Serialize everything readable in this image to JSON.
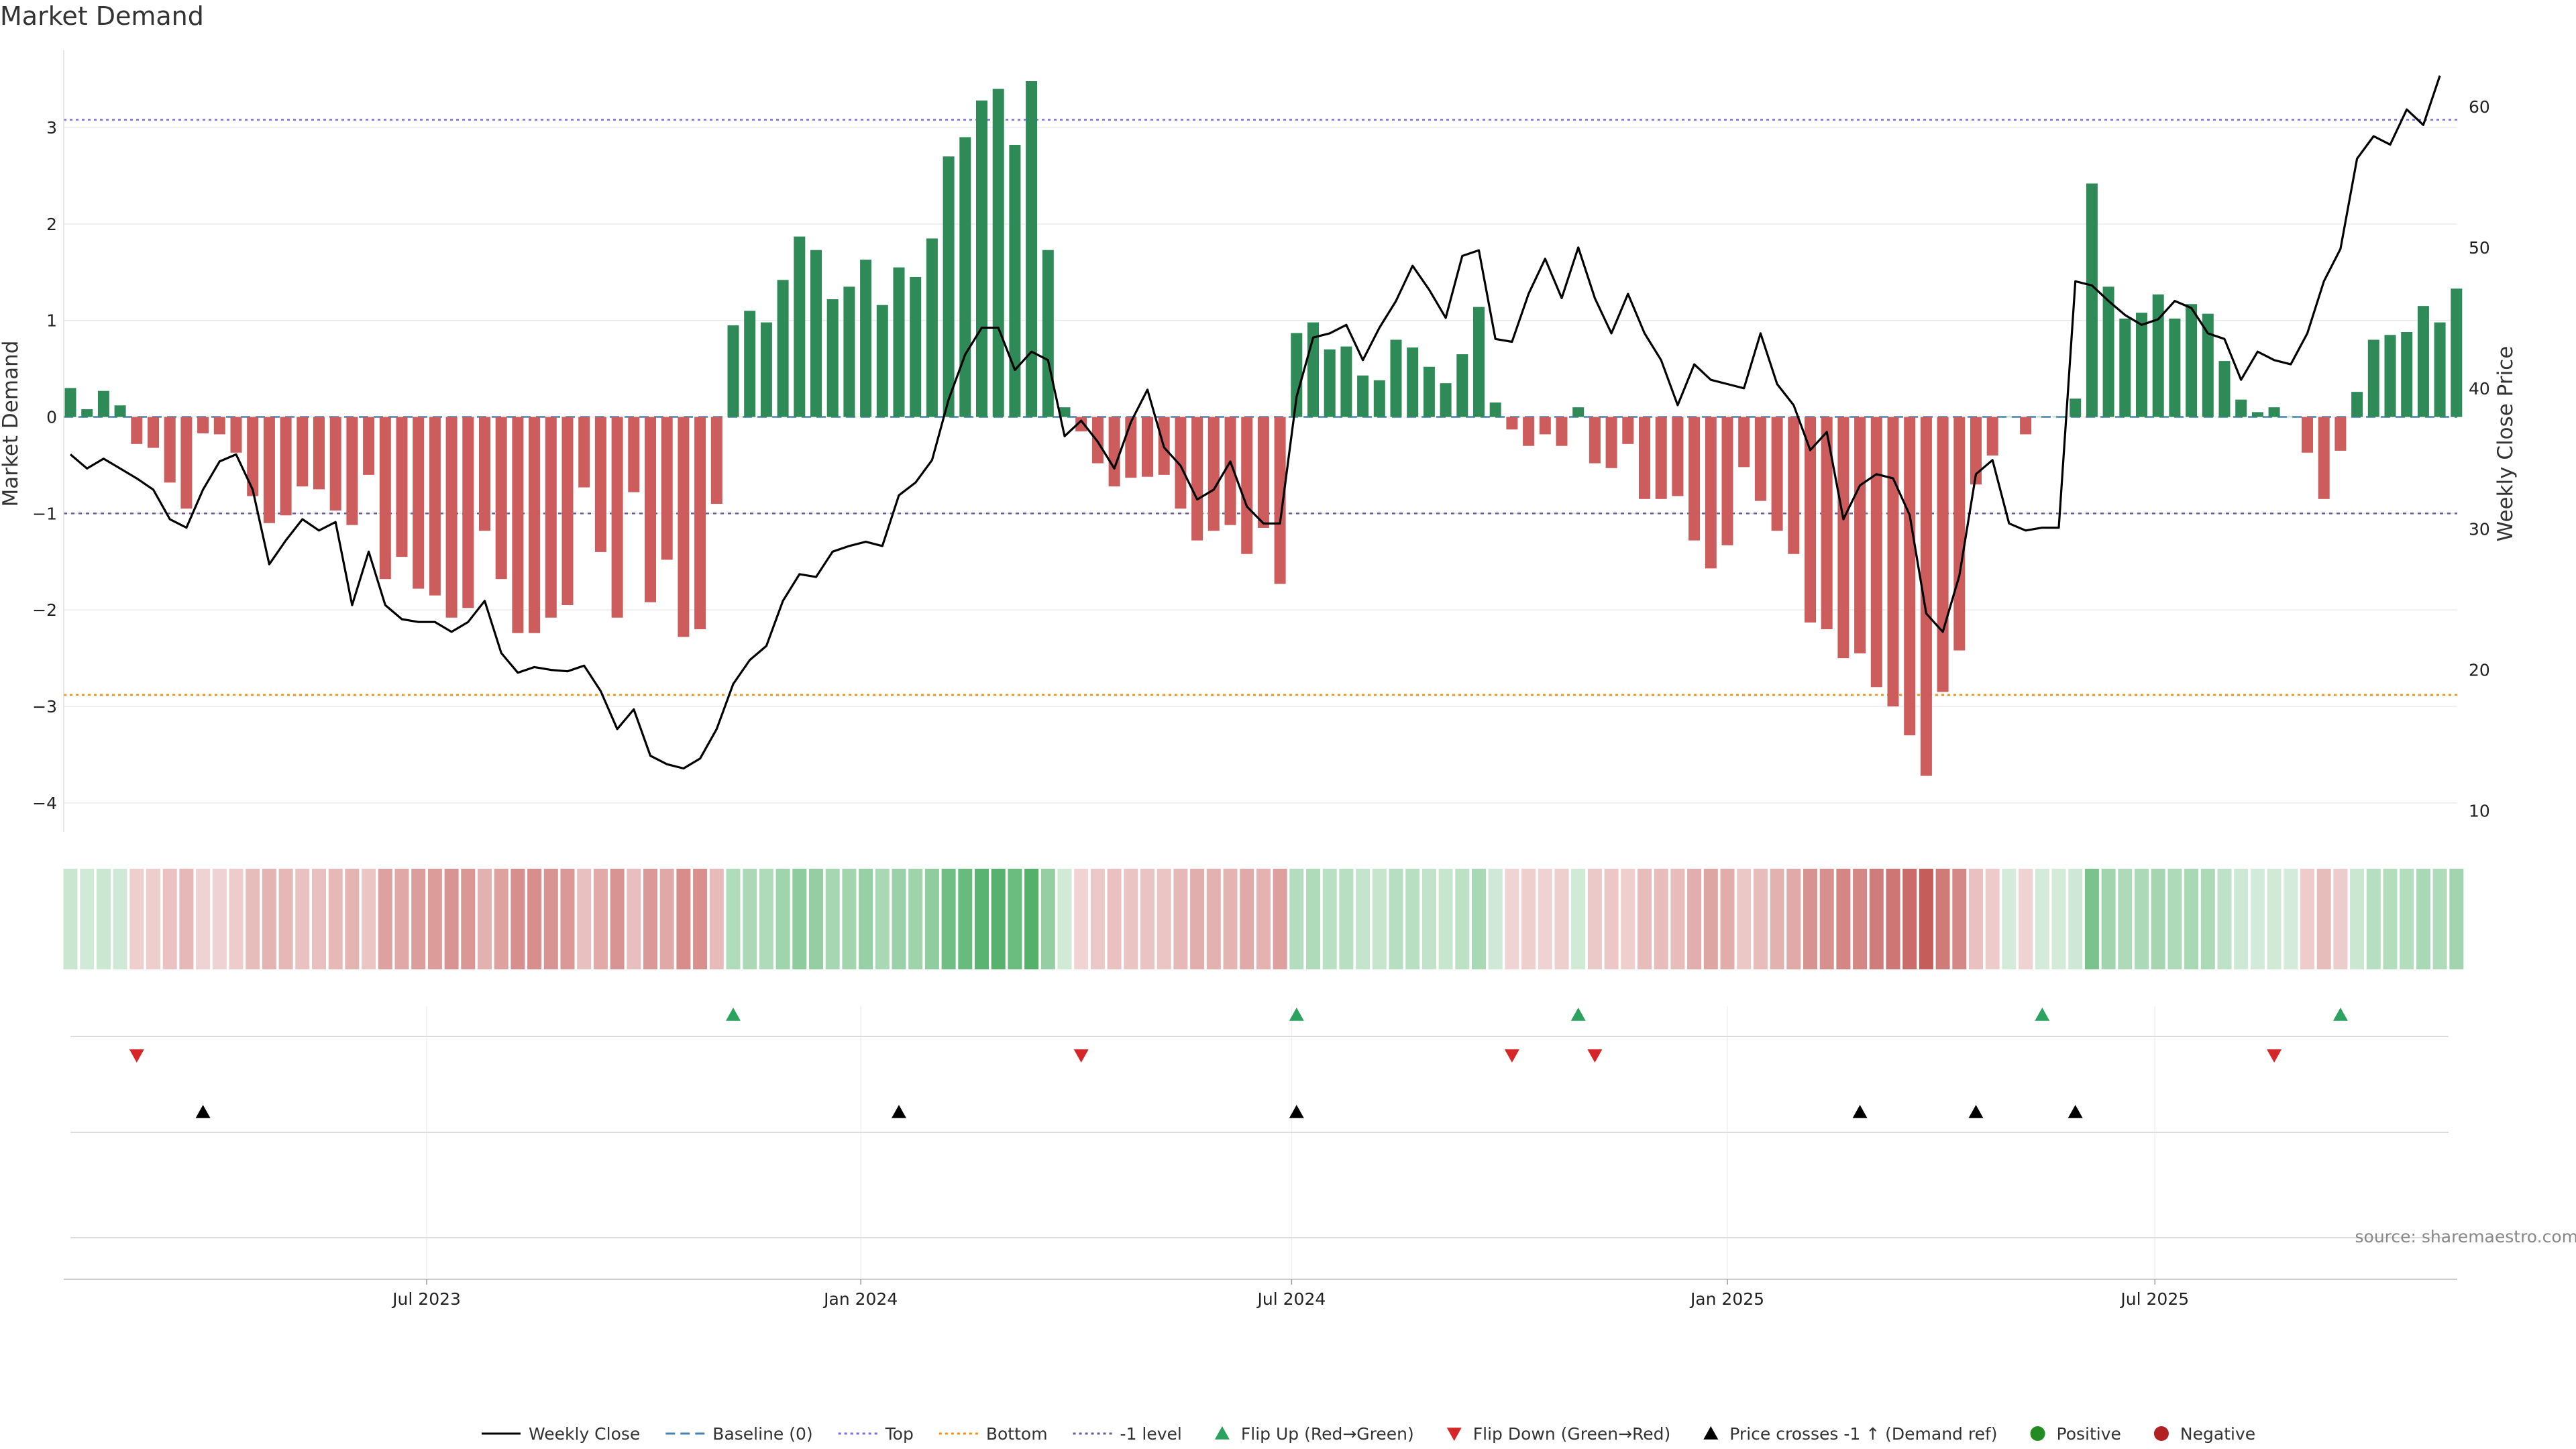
{
  "title": "Market Demand",
  "chart_data": {
    "type": "bar",
    "title": "Market Demand",
    "ylabel_left": "Market Demand",
    "ylabel_right": "Weekly Close Price",
    "ylim_left": [
      -4.3,
      3.8
    ],
    "ylim_right": [
      8.5,
      64
    ],
    "yticks_left": [
      {
        "value": 3,
        "label": "3"
      },
      {
        "value": 2,
        "label": "2"
      },
      {
        "value": 1,
        "label": "1"
      },
      {
        "value": 0,
        "label": "0"
      },
      {
        "value": -1,
        "label": "−1"
      },
      {
        "value": -2,
        "label": "−2"
      },
      {
        "value": -3,
        "label": "−3"
      },
      {
        "value": -4,
        "label": "−4"
      }
    ],
    "yticks_right": [
      {
        "value": 60,
        "label": "60"
      },
      {
        "value": 50,
        "label": "50"
      },
      {
        "value": 40,
        "label": "40"
      },
      {
        "value": 30,
        "label": "30"
      },
      {
        "value": 20,
        "label": "20"
      },
      {
        "value": 10,
        "label": "10"
      }
    ],
    "xticks": [
      {
        "index": 21.5,
        "label": "Jul 2023"
      },
      {
        "index": 47.7,
        "label": "Jan 2024"
      },
      {
        "index": 73.7,
        "label": "Jul 2024"
      },
      {
        "index": 100,
        "label": "Jan 2025"
      },
      {
        "index": 125.8,
        "label": "Jul 2025"
      }
    ],
    "reference_lines": {
      "top": 3.08,
      "bottom": -2.88,
      "minus_one": -1,
      "baseline": 0
    },
    "series": [
      {
        "name": "Market Demand (weekly)",
        "values": [
          0.3,
          0.08,
          0.27,
          0.12,
          -0.28,
          -0.32,
          -0.68,
          -0.95,
          -0.17,
          -0.18,
          -0.37,
          -0.82,
          -1.1,
          -1.02,
          -0.72,
          -0.75,
          -0.97,
          -1.12,
          -0.6,
          -1.68,
          -1.45,
          -1.78,
          -1.85,
          -2.08,
          -1.98,
          -1.18,
          -1.68,
          -2.24,
          -2.24,
          -2.08,
          -1.95,
          -0.73,
          -1.4,
          -2.08,
          -0.78,
          -1.92,
          -1.48,
          -2.28,
          -2.2,
          -0.9,
          0.95,
          1.1,
          0.98,
          1.42,
          1.87,
          1.73,
          1.22,
          1.35,
          1.63,
          1.16,
          1.55,
          1.45,
          1.85,
          2.7,
          2.9,
          3.28,
          3.4,
          2.82,
          3.48,
          1.73,
          0.1,
          -0.15,
          -0.48,
          -0.72,
          -0.63,
          -0.62,
          -0.6,
          -0.95,
          -1.28,
          -1.18,
          -1.12,
          -1.42,
          -1.15,
          -1.73,
          0.87,
          0.98,
          0.7,
          0.73,
          0.43,
          0.38,
          0.8,
          0.72,
          0.52,
          0.35,
          0.65,
          1.14,
          0.15,
          -0.13,
          -0.3,
          -0.18,
          -0.3,
          0.1,
          -0.48,
          -0.53,
          -0.28,
          -0.85,
          -0.85,
          -0.82,
          -1.28,
          -1.57,
          -1.33,
          -0.52,
          -0.87,
          -1.18,
          -1.42,
          -2.13,
          -2.2,
          -2.5,
          -2.45,
          -2.8,
          -3.0,
          -3.3,
          -3.72,
          -2.85,
          -2.42,
          -0.7,
          -0.4,
          0.0,
          -0.18,
          0.0,
          0.0,
          0.19,
          2.42,
          1.35,
          1.02,
          1.08,
          1.27,
          1.02,
          1.17,
          1.07,
          0.58,
          0.18,
          0.05,
          0.1,
          0.0,
          -0.37,
          -0.85,
          -0.35,
          0.26,
          0.8,
          0.85,
          0.88,
          1.15,
          0.98,
          1.33
        ]
      },
      {
        "name": "Weekly Close",
        "values": [
          35.3,
          34.3,
          35.0,
          34.3,
          33.6,
          32.8,
          30.7,
          30.1,
          32.8,
          34.8,
          35.3,
          32.8,
          27.5,
          29.2,
          30.7,
          29.9,
          30.5,
          24.6,
          28.4,
          24.6,
          23.6,
          23.4,
          23.4,
          22.7,
          23.4,
          24.9,
          21.2,
          19.8,
          20.2,
          20.0,
          19.9,
          20.3,
          18.5,
          15.8,
          17.2,
          13.9,
          13.3,
          13.0,
          13.7,
          15.8,
          19.0,
          20.7,
          21.7,
          24.9,
          26.8,
          26.6,
          28.4,
          28.8,
          29.1,
          28.8,
          32.4,
          33.3,
          34.9,
          39.2,
          42.4,
          44.3,
          44.3,
          41.3,
          42.6,
          42.0,
          36.6,
          37.7,
          36.2,
          34.3,
          37.6,
          39.9,
          35.8,
          34.5,
          32.1,
          32.8,
          34.8,
          31.6,
          30.4,
          30.4,
          39.4,
          43.6,
          43.9,
          44.5,
          42.0,
          44.3,
          46.2,
          48.7,
          47.0,
          45.0,
          49.4,
          49.8,
          43.5,
          43.3,
          46.7,
          49.2,
          46.4,
          50.0,
          46.4,
          43.9,
          46.7,
          43.9,
          42.0,
          38.8,
          41.7,
          40.6,
          40.3,
          40.0,
          43.9,
          40.3,
          38.8,
          35.6,
          36.9,
          30.7,
          33.1,
          33.9,
          33.6,
          31.0,
          24.0,
          22.7,
          26.7,
          33.9,
          34.9,
          30.4,
          29.9,
          30.1,
          30.1,
          47.6,
          47.3,
          46.2,
          45.2,
          44.5,
          44.9,
          46.2,
          45.7,
          43.9,
          43.5,
          40.6,
          42.6,
          42.0,
          41.7,
          43.9,
          47.6,
          49.9,
          56.3,
          57.9,
          57.3,
          59.8,
          58.7,
          62.2
        ]
      }
    ],
    "heatmap_strip": "one cell per week, green shade = positive demand, red shade = negative demand, intensity = magnitude",
    "markers": {
      "flip_up_indices": [
        40,
        74,
        91,
        119,
        137
      ],
      "flip_down_indices": [
        4,
        61,
        87,
        92,
        133
      ],
      "price_cross_indices": [
        8,
        50,
        74,
        108,
        115,
        121
      ]
    },
    "legend": [
      {
        "key": "weekly_close",
        "label": "Weekly Close"
      },
      {
        "key": "baseline",
        "label": "Baseline (0)"
      },
      {
        "key": "top",
        "label": "Top"
      },
      {
        "key": "bottom",
        "label": "Bottom"
      },
      {
        "key": "minus_one",
        "label": "-1 level"
      },
      {
        "key": "flip_up",
        "label": "Flip Up (Red→Green)"
      },
      {
        "key": "flip_down",
        "label": "Flip Down (Green→Red)"
      },
      {
        "key": "price_cross",
        "label": "Price crosses -1 ↑ (Demand ref)"
      },
      {
        "key": "positive",
        "label": "Positive"
      },
      {
        "key": "negative",
        "label": "Negative"
      }
    ],
    "legend_position": "bottom-center",
    "source": "source: sharemaestro.com"
  },
  "colors": {
    "positive": "#2e8b57",
    "negative": "#cd5c5c",
    "line": "#000000",
    "baseline": "#4682b4",
    "top": "#7b68ee",
    "bottom": "#ff8c00",
    "minus_one": "#6a5a9a",
    "flip_up": "#2ca25f",
    "flip_down": "#d62728",
    "price_cross": "#000000",
    "positive_dot": "#228b22",
    "negative_dot": "#b22222"
  }
}
